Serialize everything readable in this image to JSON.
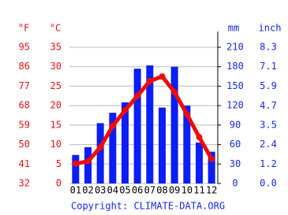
{
  "chart_data": {
    "type": "bar_line",
    "f_label": "°F",
    "c_label": "°C",
    "mm_label": "mm",
    "inch_label": "inch",
    "copyright": "Copyright: CLIMATE-DATA.ORG",
    "categories": [
      "01",
      "02",
      "03",
      "04",
      "05",
      "06",
      "07",
      "08",
      "09",
      "10",
      "11",
      "12"
    ],
    "series": [
      {
        "name": "precipitation",
        "color": "#0a1ef5",
        "axis": "y2",
        "values": [
          44,
          56,
          93,
          109,
          125,
          177,
          182,
          117,
          180,
          120,
          63,
          49
        ]
      },
      {
        "name": "temperature",
        "color": "#f00a0a",
        "values": [
          5.1,
          5.7,
          9.3,
          14.8,
          18.8,
          22.5,
          26.3,
          27.5,
          23.5,
          17.8,
          11.9,
          6.3
        ]
      }
    ],
    "ylim": [
      0,
      35
    ],
    "yticks": [
      0,
      5,
      10,
      15,
      20,
      25,
      30,
      35
    ],
    "flim": [
      32,
      95
    ],
    "fticks": [
      32,
      41,
      50,
      59,
      68,
      77,
      86,
      95
    ],
    "y2lim": [
      0,
      210
    ],
    "y2ticks": [
      0,
      30,
      60,
      90,
      120,
      150,
      180,
      210
    ],
    "inchlim": [
      0,
      8.27
    ],
    "inchticks": [
      {
        "value": 0,
        "label": "0.0"
      },
      {
        "value": 1.18,
        "label": "1.2"
      },
      {
        "value": 2.36,
        "label": "2.4"
      },
      {
        "value": 3.54,
        "label": "3.5"
      },
      {
        "value": 4.72,
        "label": "4.7"
      },
      {
        "value": 5.91,
        "label": "5.9"
      },
      {
        "value": 7.09,
        "label": "7.1"
      },
      {
        "value": 8.27,
        "label": "8.3"
      }
    ],
    "grid": true
  }
}
